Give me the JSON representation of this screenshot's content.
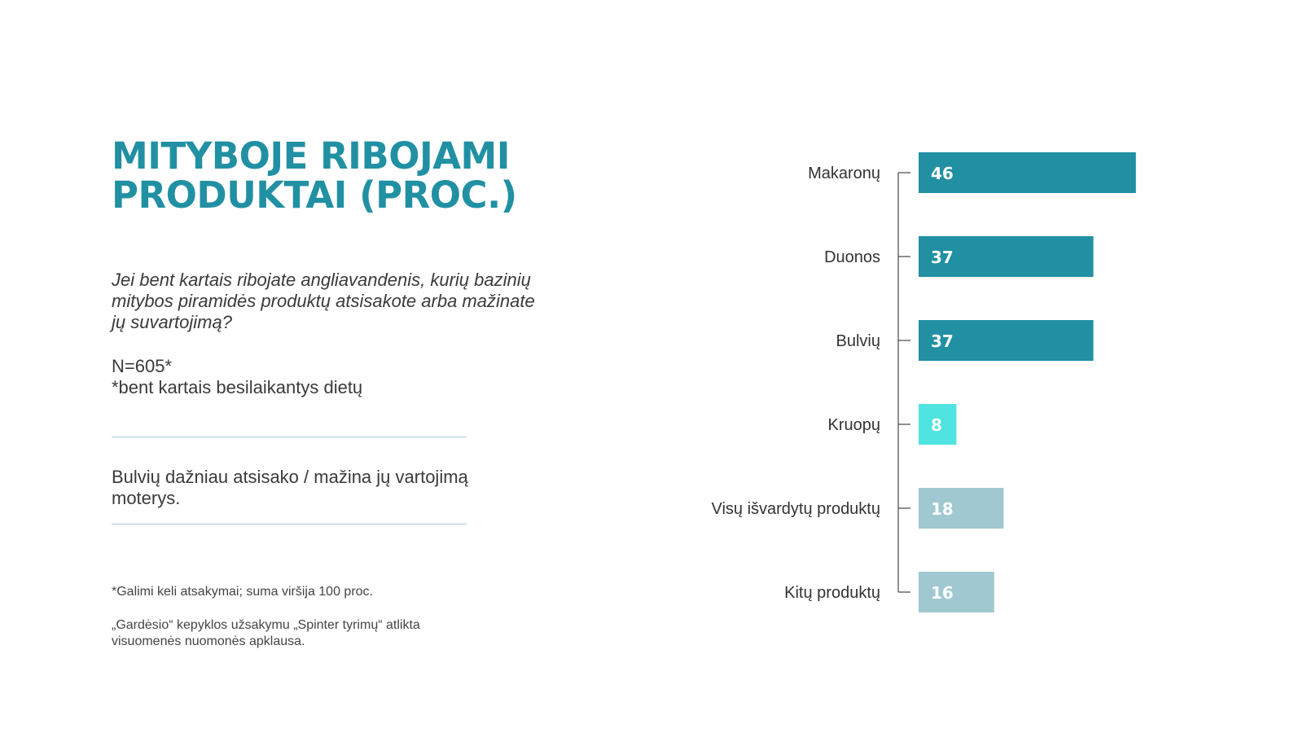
{
  "title_lines": [
    "MITYBOJE RIBOJAMI",
    "PRODUKTAI (PROC.)"
  ],
  "question": "Jei bent kartais ribojate angliavandenis, kurių bazinių mitybos piramidės produktų atsisakote arba mažinate jų suvartojimą?",
  "sample": {
    "n": "N=605*",
    "note": "*bent kartais besilaikantys dietų"
  },
  "finding": "Bulvių dažniau atsisako / mažina jų vartojimą moterys.",
  "footnote": "*Galimi keli atsakymai; suma viršija 100 proc.",
  "source": "„Gardėsio“ kepyklos užsakymu „Spinter tyrimų“ atlikta visuomenės nuomonės apklausa.",
  "colors": {
    "title": "#2190a3",
    "primary_bar": "#2190a3",
    "highlight_bar": "#4fe3e1",
    "secondary_bar": "#9fc8d1",
    "divider": "#a9ced6",
    "axis": "#555555"
  },
  "chart_data": {
    "type": "bar",
    "orientation": "horizontal",
    "categories": [
      "Makaronų",
      "Duonos",
      "Bulvių",
      "Kruopų",
      "Visų išvardytų produktų",
      "Kitų produktų"
    ],
    "values": [
      46,
      37,
      37,
      8,
      18,
      16
    ],
    "bar_colors": [
      "#2190a3",
      "#2190a3",
      "#2190a3",
      "#4fe3e1",
      "#9fc8d1",
      "#9fc8d1"
    ],
    "data_labels": [
      "46",
      "37",
      "37",
      "8",
      "18",
      "16"
    ],
    "xlim": [
      0,
      50
    ],
    "grid": false,
    "legend": "none"
  }
}
